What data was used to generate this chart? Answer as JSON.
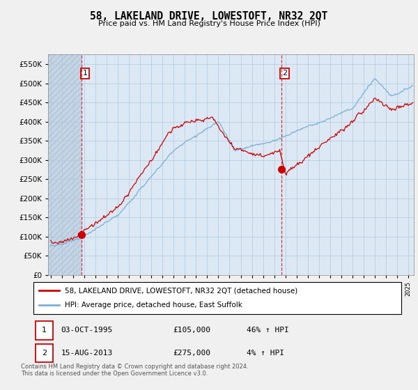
{
  "title": "58, LAKELAND DRIVE, LOWESTOFT, NR32 2QT",
  "subtitle": "Price paid vs. HM Land Registry's House Price Index (HPI)",
  "ylabel_vals": [
    0,
    50000,
    100000,
    150000,
    200000,
    250000,
    300000,
    350000,
    400000,
    450000,
    500000,
    550000
  ],
  "ylim": [
    0,
    575000
  ],
  "xlim_start": 1992.75,
  "xlim_end": 2025.5,
  "sale1_x": 1995.75,
  "sale1_y": 105000,
  "sale2_x": 2013.62,
  "sale2_y": 275000,
  "legend_line1": "58, LAKELAND DRIVE, LOWESTOFT, NR32 2QT (detached house)",
  "legend_line2": "HPI: Average price, detached house, East Suffolk",
  "info1_num": "1",
  "info1_date": "03-OCT-1995",
  "info1_price": "£105,000",
  "info1_hpi": "46% ↑ HPI",
  "info2_num": "2",
  "info2_date": "15-AUG-2013",
  "info2_price": "£275,000",
  "info2_hpi": "4% ↑ HPI",
  "footer": "Contains HM Land Registry data © Crown copyright and database right 2024.\nThis data is licensed under the Open Government Licence v3.0.",
  "sale_color": "#cc0000",
  "hpi_color": "#7bafd4",
  "plot_bg": "#dce9f5",
  "hatch_bg": "#c8d8e8",
  "grid_color": "#b0c8e0",
  "bg_color": "#f0f0f0"
}
